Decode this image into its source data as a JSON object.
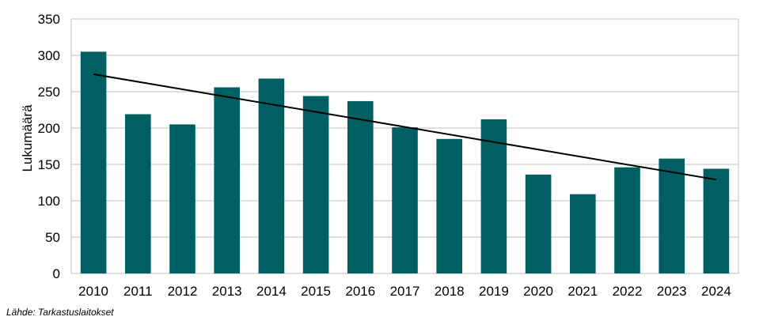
{
  "chart_data": {
    "type": "bar",
    "title": "",
    "xlabel": "",
    "ylabel": "Lukumäärä",
    "categories": [
      "2010",
      "2011",
      "2012",
      "2013",
      "2014",
      "2015",
      "2016",
      "2017",
      "2018",
      "2019",
      "2020",
      "2021",
      "2022",
      "2023",
      "2024"
    ],
    "values": [
      305,
      219,
      205,
      256,
      268,
      244,
      237,
      201,
      185,
      212,
      136,
      109,
      146,
      158,
      144
    ],
    "ylim": [
      0,
      350
    ],
    "yticks": [
      0,
      50,
      100,
      150,
      200,
      250,
      300,
      350
    ],
    "trendline": {
      "start": 274,
      "end": 129
    },
    "grid": true,
    "legend": "none",
    "colors": {
      "bar": "#005f63",
      "trend": "#000000",
      "grid": "#bfbfbf"
    }
  },
  "source": "Lähde: Tarkastuslaitokset"
}
